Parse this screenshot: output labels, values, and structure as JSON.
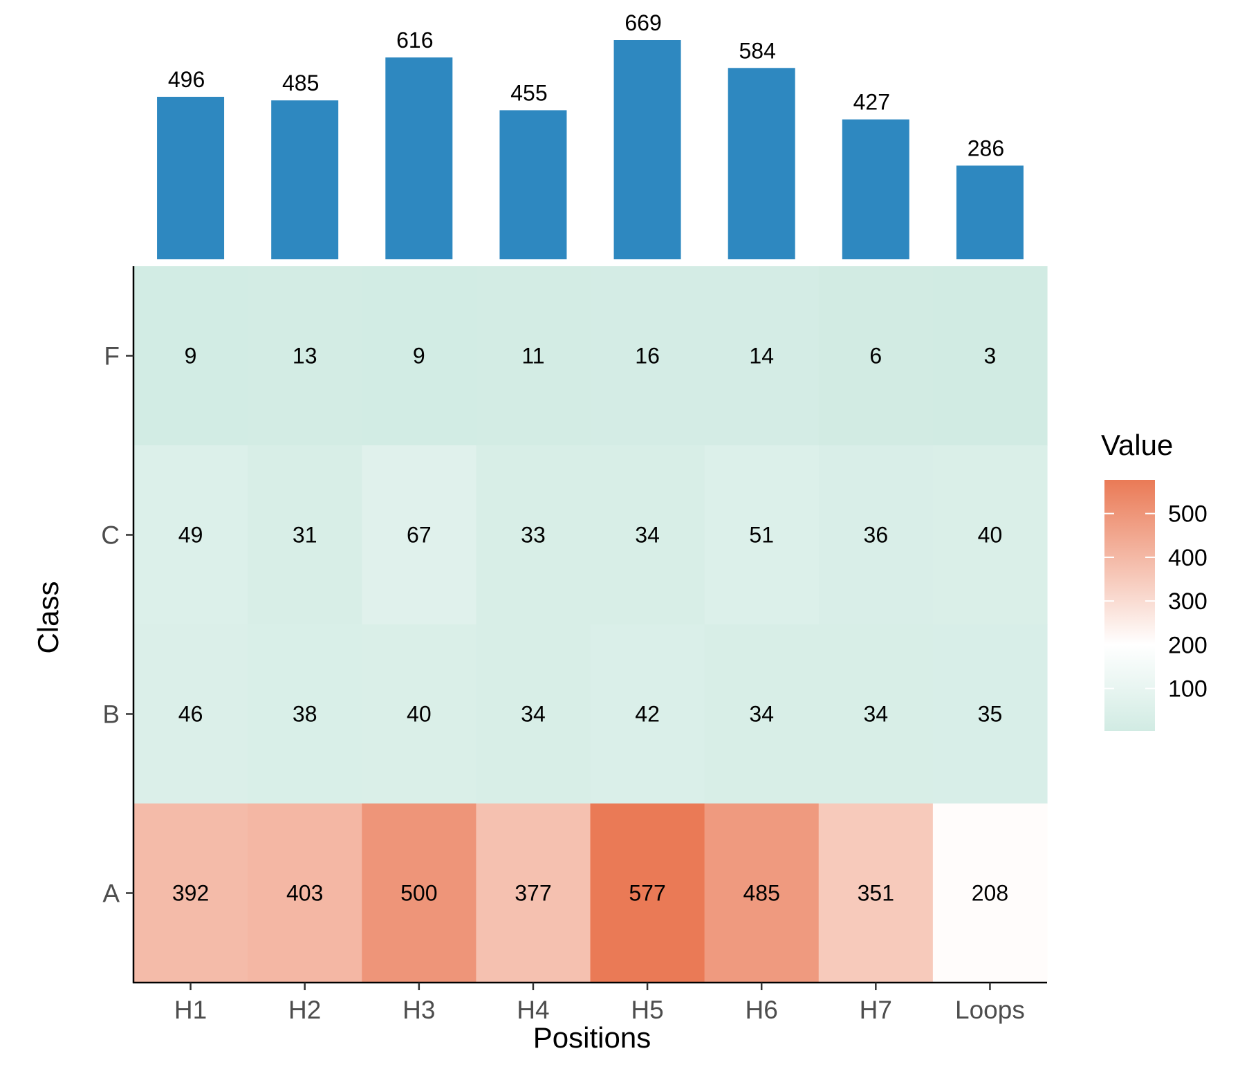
{
  "chart_data": [
    {
      "type": "bar",
      "categories": [
        "H1",
        "H2",
        "H3",
        "H4",
        "H5",
        "H6",
        "H7",
        "Loops"
      ],
      "values": [
        496,
        485,
        616,
        455,
        669,
        584,
        427,
        286
      ],
      "value_labels": [
        "496",
        "485",
        "616",
        "455",
        "669",
        "584",
        "427",
        "286"
      ],
      "bar_color": "#2E88C0",
      "ylim": [
        0,
        669
      ]
    },
    {
      "type": "heatmap",
      "x_categories": [
        "H1",
        "H2",
        "H3",
        "H4",
        "H5",
        "H6",
        "H7",
        "Loops"
      ],
      "y_categories": [
        "F",
        "C",
        "B",
        "A"
      ],
      "values": [
        [
          9,
          13,
          9,
          11,
          16,
          14,
          6,
          3
        ],
        [
          49,
          31,
          67,
          33,
          34,
          51,
          36,
          40
        ],
        [
          46,
          38,
          40,
          34,
          42,
          34,
          34,
          35
        ],
        [
          392,
          403,
          500,
          377,
          577,
          485,
          351,
          208
        ]
      ],
      "cell_labels": [
        [
          "9",
          "13",
          "9",
          "11",
          "16",
          "14",
          "6",
          "3"
        ],
        [
          "49",
          "31",
          "67",
          "33",
          "34",
          "51",
          "36",
          "40"
        ],
        [
          "46",
          "38",
          "40",
          "34",
          "42",
          "34",
          "34",
          "35"
        ],
        [
          "392",
          "403",
          "500",
          "377",
          "577",
          "485",
          "351",
          "208"
        ]
      ],
      "xlabel": "Positions",
      "ylabel": "Class",
      "legend": {
        "title": "Value",
        "ticks": [
          100,
          200,
          300,
          400,
          500
        ],
        "tick_labels": [
          "100",
          "200",
          "300",
          "400",
          "500"
        ],
        "range": [
          3,
          577
        ],
        "colors": {
          "low": "#D1EBE3",
          "mid": "#FFFFFF",
          "high": "#EA7A56"
        },
        "placement": "right"
      }
    }
  ]
}
